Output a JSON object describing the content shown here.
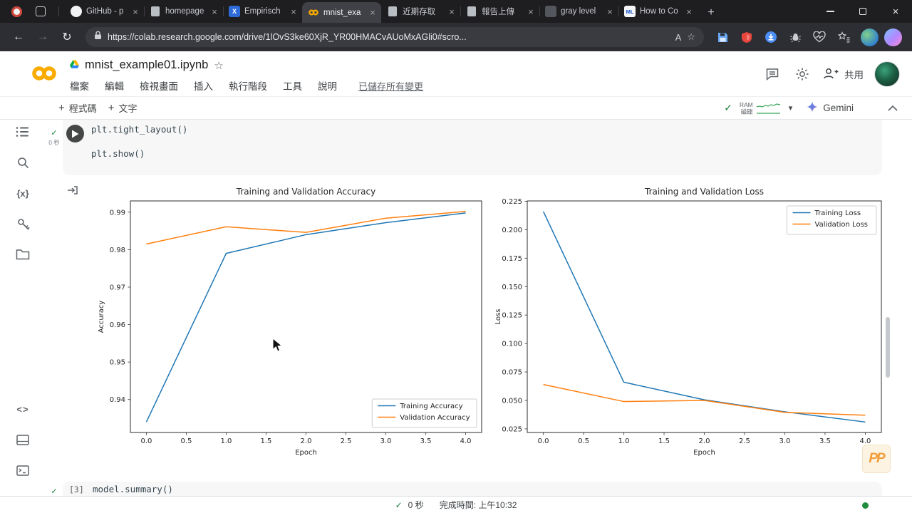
{
  "browser": {
    "tabs": [
      {
        "label": "GitHub - p",
        "icon": "github"
      },
      {
        "label": "homepage",
        "icon": "document"
      },
      {
        "label": "Empirisch",
        "icon": "blue-app",
        "icon_text": "X"
      },
      {
        "label": "mnist_exa",
        "icon": "colab",
        "active": true
      },
      {
        "label": "近期存取",
        "icon": "document"
      },
      {
        "label": "報告上傳",
        "icon": "document"
      },
      {
        "label": "gray level",
        "icon": "dark-app"
      },
      {
        "label": "How to Co",
        "icon": "ml-badge",
        "icon_text": "ML"
      }
    ],
    "close_glyph": "×",
    "new_tab_glyph": "+",
    "nav": {
      "back": "←",
      "forward": "→",
      "refresh": "↻"
    },
    "address": {
      "url": "https://colab.research.google.com/drive/1lOvS3ke60XjR_YR00HMACvAUoMxAGli0#scro...",
      "read_aloud": "A",
      "star": "☆"
    }
  },
  "header": {
    "title": "mnist_example01.ipynb",
    "star": "☆",
    "menus": [
      "檔案",
      "編輯",
      "檢視畫面",
      "插入",
      "執行階段",
      "工具",
      "說明"
    ],
    "saved_status": "已儲存所有變更",
    "share_label": "共用"
  },
  "toolbar": {
    "plus": "+",
    "add_code_label": "程式碼",
    "add_text_label": "文字",
    "check": "✓",
    "ram_label": "RAM",
    "disk_label": "磁碟",
    "caret": "▾",
    "gemini_label": "Gemini"
  },
  "sidebar": {
    "vars_glyph": "{x}",
    "code_glyph": "<>"
  },
  "cells": {
    "check": "✓",
    "exec_time": "0 秒",
    "code_line_1": "plt.tight_layout()",
    "code_line_2": "plt.show()",
    "next_exec_count": "[3]",
    "next_code": "model.summary()"
  },
  "statusbar": {
    "check": "✓",
    "time": "0 秒",
    "completed": "完成時間: 上午10:32"
  },
  "watermark": "PP",
  "colors": {
    "mpl_blue": "#1f77b4",
    "mpl_orange": "#ff7f0e",
    "colab_orange": "#F9AB00",
    "success_green": "#1e8e3e",
    "link_blue": "#1a73e8"
  },
  "chart_data": [
    {
      "type": "line",
      "title": "Training and Validation Accuracy",
      "xlabel": "Epoch",
      "ylabel": "Accuracy",
      "x": [
        0,
        1,
        2,
        3,
        4
      ],
      "series": [
        {
          "name": "Training Accuracy",
          "color": "#1f77b4",
          "values": [
            0.934,
            0.979,
            0.984,
            0.9872,
            0.9898
          ]
        },
        {
          "name": "Validation Accuracy",
          "color": "#ff7f0e",
          "values": [
            0.9815,
            0.9861,
            0.9846,
            0.9884,
            0.9902
          ]
        }
      ],
      "xlim": [
        -0.2,
        4.2
      ],
      "ylim": [
        0.9312,
        0.993
      ],
      "xticks": [
        "0.0",
        "0.5",
        "1.0",
        "1.5",
        "2.0",
        "2.5",
        "3.0",
        "3.5",
        "4.0"
      ],
      "yticks": [
        "0.94",
        "0.95",
        "0.96",
        "0.97",
        "0.98",
        "0.99"
      ],
      "grid": false,
      "legend": {
        "position": "lower-right"
      }
    },
    {
      "type": "line",
      "title": "Training and Validation Loss",
      "xlabel": "Epoch",
      "ylabel": "Loss",
      "x": [
        0,
        1,
        2,
        3,
        4
      ],
      "series": [
        {
          "name": "Training Loss",
          "color": "#1f77b4",
          "values": [
            0.216,
            0.066,
            0.0505,
            0.04,
            0.031
          ]
        },
        {
          "name": "Validation Loss",
          "color": "#ff7f0e",
          "values": [
            0.064,
            0.049,
            0.05,
            0.0395,
            0.037
          ]
        }
      ],
      "xlim": [
        -0.2,
        4.2
      ],
      "ylim": [
        0.0218,
        0.2253
      ],
      "xticks": [
        "0.0",
        "0.5",
        "1.0",
        "1.5",
        "2.0",
        "2.5",
        "3.0",
        "3.5",
        "4.0"
      ],
      "yticks": [
        "0.025",
        "0.050",
        "0.075",
        "0.100",
        "0.125",
        "0.150",
        "0.175",
        "0.200",
        "0.225"
      ],
      "grid": false,
      "legend": {
        "position": "upper-right"
      }
    }
  ]
}
